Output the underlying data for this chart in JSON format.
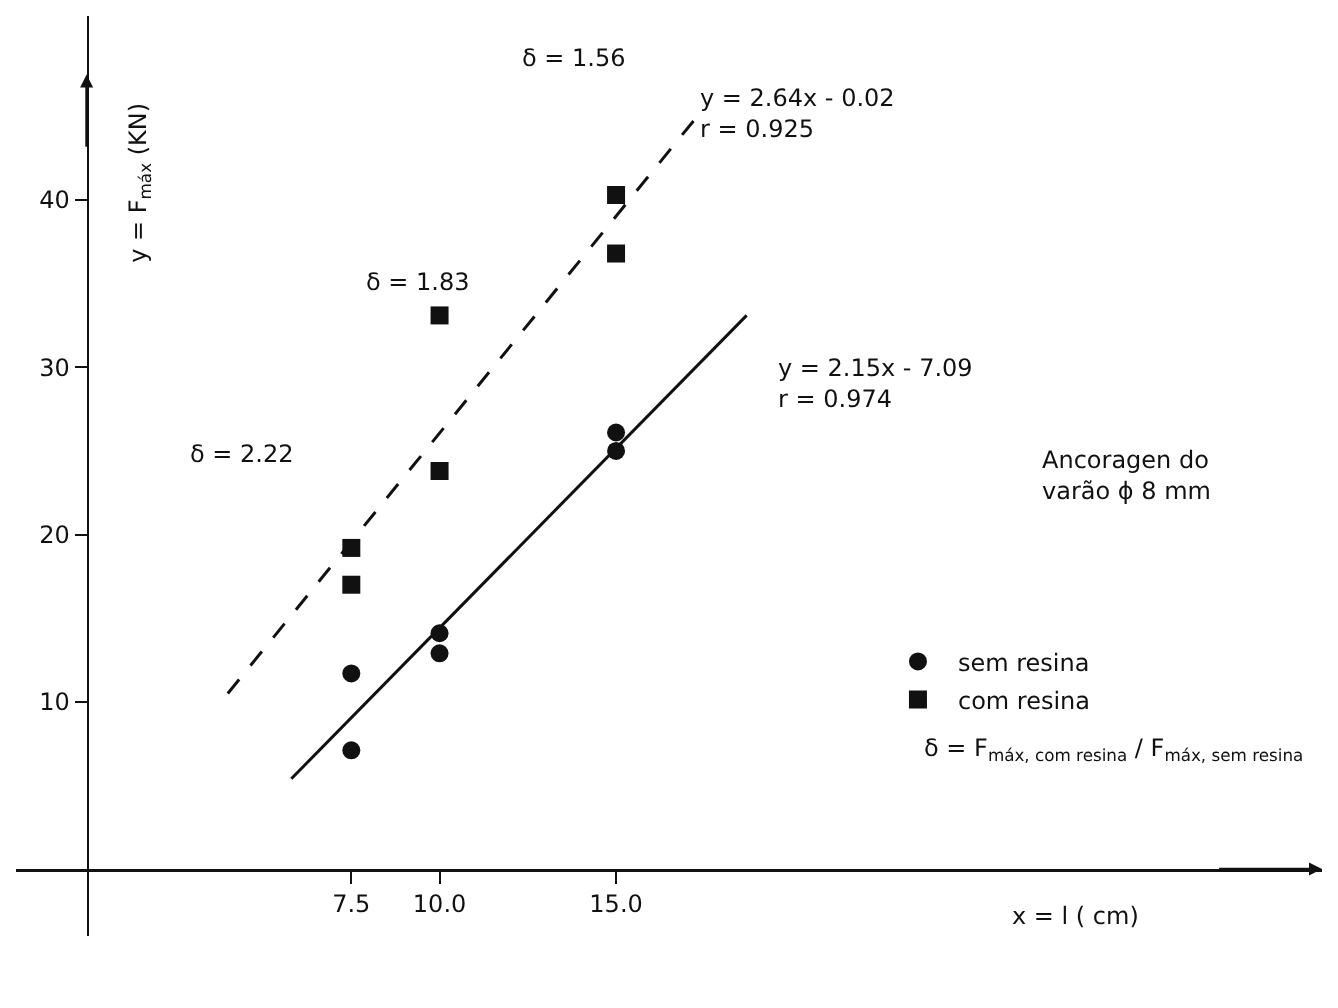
{
  "chart_data": {
    "type": "scatter",
    "xlabel": "x = l ( cm)",
    "ylabel": "y = F$_{máx}$ (KN)",
    "x": [
      7.5,
      7.5,
      10,
      10,
      15,
      15
    ],
    "series": [
      {
        "name": "sem resina",
        "color": "#111111",
        "marker": "circle",
        "values": [
          11.7,
          7.1,
          14.1,
          12.9,
          26.1,
          25.0
        ]
      },
      {
        "name": "com resina",
        "color": "#111111",
        "marker": "square",
        "values": [
          19.2,
          17.0,
          33.1,
          23.8,
          40.3,
          36.8
        ]
      },
      {
        "type": "line",
        "color": "#111111",
        "line_style": "solid",
        "x": [
          5.8,
          18.7
        ],
        "values": [
          5.4,
          33.1
        ]
      },
      {
        "type": "line",
        "color": "#111111",
        "line_style": "dashed",
        "x": [
          4.0,
          17.3
        ],
        "values": [
          10.5,
          45.0
        ]
      }
    ],
    "xlim": [
      -2,
      35
    ],
    "ylim": [
      -4,
      51
    ],
    "xticks": [
      {
        "value": 7.5,
        "label": "7.5"
      },
      {
        "value": 10,
        "label": "10.0"
      },
      {
        "value": 15,
        "label": "15.0"
      }
    ],
    "yticks": [
      10,
      20,
      30,
      40
    ],
    "grid": false,
    "legend": "bottom right",
    "annotations": [
      "δ = 1.56",
      "δ = 1.83",
      "δ = 2.22",
      "y = 2.64x - 0.02\nr = 0.925",
      "y = 2.15x - 7.09\nr = 0.974",
      "Ancoragen do\nvarão ϕ 8 mm",
      "δ = F$_{máx, com resina}$ / F$_{máx, sem resina}$"
    ]
  }
}
